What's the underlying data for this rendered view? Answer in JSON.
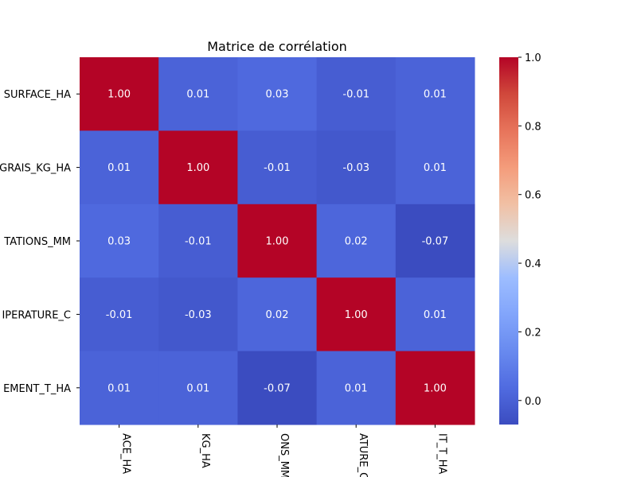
{
  "chart_data": {
    "type": "heatmap",
    "title": "Matrice de corrélation",
    "row_labels": [
      "SURFACE_HA",
      "GRAIS_KG_HA",
      "TATIONS_MM",
      "IPERATURE_C",
      "EMENT_T_HA"
    ],
    "col_labels": [
      "ACE_HA",
      "KG_HA",
      "ONS_MM",
      "ATURE_C",
      "IT_T_HA"
    ],
    "values": [
      [
        1.0,
        0.01,
        0.03,
        -0.01,
        0.01
      ],
      [
        0.01,
        1.0,
        -0.01,
        -0.03,
        0.01
      ],
      [
        0.03,
        -0.01,
        1.0,
        0.02,
        -0.07
      ],
      [
        -0.01,
        -0.03,
        0.02,
        1.0,
        0.01
      ],
      [
        0.01,
        0.01,
        -0.07,
        0.01,
        1.0
      ]
    ],
    "cell_labels": [
      [
        "1.00",
        "0.01",
        "0.03",
        "-0.01",
        "0.01"
      ],
      [
        "0.01",
        "1.00",
        "-0.01",
        "-0.03",
        "0.01"
      ],
      [
        "0.03",
        "-0.01",
        "1.00",
        "0.02",
        "-0.07"
      ],
      [
        "-0.01",
        "-0.03",
        "0.02",
        "1.00",
        "0.01"
      ],
      [
        "0.01",
        "0.01",
        "-0.07",
        "0.01",
        "1.00"
      ]
    ],
    "colormap": "coolwarm",
    "colorbar": {
      "vmin": -0.07,
      "vmax": 1.0,
      "ticks": [
        0.0,
        0.2,
        0.4,
        0.6,
        0.8,
        1.0
      ],
      "tick_labels": [
        "0.0",
        "0.2",
        "0.4",
        "0.6",
        "0.8",
        "1.0"
      ],
      "position": "right"
    },
    "colors": {
      "low": "#3b4cc0",
      "mid": "#dddddd",
      "high": "#b40426",
      "annotation": "#ffffff",
      "text": "#000000"
    }
  }
}
